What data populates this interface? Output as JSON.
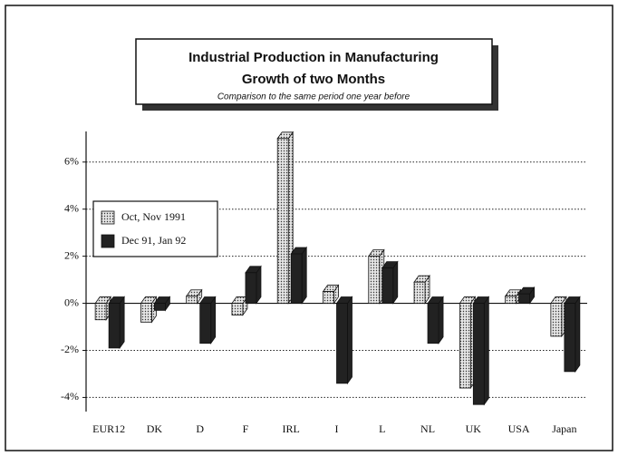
{
  "chart_data": {
    "type": "bar",
    "title": "Industrial Production in Manufacturing",
    "subtitle": "Growth of two Months",
    "note": "Comparison to the same period one year before",
    "categories": [
      "EUR12",
      "DK",
      "D",
      "F",
      "IRL",
      "I",
      "L",
      "NL",
      "UK",
      "USA",
      "Japan"
    ],
    "series": [
      {
        "name": "Oct, Nov 1991",
        "color": "#e4e4e4",
        "fill_pattern": "dots",
        "values": [
          -0.7,
          -0.8,
          0.3,
          -0.5,
          7.0,
          0.5,
          2.0,
          0.9,
          -3.6,
          0.3,
          -1.4
        ]
      },
      {
        "name": "Dec 91, Jan 92",
        "color": "#222222",
        "values": [
          -1.9,
          -0.3,
          -1.7,
          1.3,
          2.1,
          -3.4,
          1.5,
          -1.7,
          -4.3,
          0.4,
          -2.9
        ]
      }
    ],
    "ylim": [
      -4.6,
      7.3
    ],
    "yticks": [
      {
        "value": -4,
        "label": "-4%"
      },
      {
        "value": -2,
        "label": "-2%"
      },
      {
        "value": 0,
        "label": "0%"
      },
      {
        "value": 2,
        "label": "2%"
      },
      {
        "value": 4,
        "label": "4%"
      },
      {
        "value": 6,
        "label": "6%"
      }
    ],
    "grid": true
  }
}
